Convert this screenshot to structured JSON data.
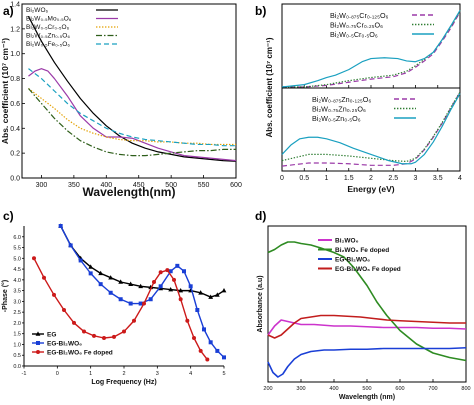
{
  "panels": {
    "a": "a)",
    "b": "b)",
    "c": "c)",
    "d": "d)"
  },
  "chart_data": [
    {
      "panel": "a",
      "type": "line",
      "xlabel": "Wavelength(nm)",
      "ylabel": "Abs. coefficient (10⁷ cm⁻¹)",
      "xlim": [
        270,
        600
      ],
      "ylim": [
        0,
        1.4
      ],
      "xticks": [
        300,
        350,
        400,
        450,
        500,
        550,
        600
      ],
      "yticks": [
        0,
        0.2,
        0.4,
        0.6,
        0.8,
        1.0,
        1.2,
        1.4
      ],
      "ytick_labels": [
        "0.0",
        "0.2",
        "0.4",
        "0.6",
        "0.8",
        "1.0",
        "1.2",
        "1.4"
      ],
      "series": [
        {
          "name": "Bi₂WO₆",
          "color": "#000000",
          "style": "solid",
          "x": [
            280,
            300,
            320,
            340,
            360,
            380,
            400,
            420,
            440,
            460,
            480,
            500,
            520,
            540,
            560,
            580,
            600
          ],
          "y": [
            1.3,
            1.1,
            0.93,
            0.78,
            0.64,
            0.52,
            0.42,
            0.34,
            0.28,
            0.24,
            0.21,
            0.19,
            0.17,
            0.16,
            0.15,
            0.14,
            0.135
          ]
        },
        {
          "name": "Bi₂W₀.₅Mo₀.₅O₆",
          "color": "#9b3aa8",
          "style": "solid",
          "x": [
            280,
            290,
            300,
            310,
            320,
            340,
            360,
            380,
            400,
            420,
            440,
            460,
            480,
            500,
            520,
            540,
            560,
            580,
            600
          ],
          "y": [
            0.82,
            0.86,
            0.88,
            0.86,
            0.8,
            0.66,
            0.5,
            0.4,
            0.33,
            0.33,
            0.32,
            0.28,
            0.24,
            0.21,
            0.18,
            0.17,
            0.16,
            0.15,
            0.14
          ]
        },
        {
          "name": "Bi₂W₀.₅Cr₀.₅O₆",
          "color": "#e3a000",
          "style": "dotted",
          "x": [
            280,
            300,
            320,
            340,
            360,
            380,
            400,
            420,
            440,
            460,
            480,
            500,
            520,
            540,
            560,
            580,
            600
          ],
          "y": [
            0.72,
            0.64,
            0.56,
            0.47,
            0.4,
            0.36,
            0.33,
            0.31,
            0.3,
            0.3,
            0.29,
            0.29,
            0.28,
            0.28,
            0.27,
            0.27,
            0.27
          ]
        },
        {
          "name": "Bi₂W₀.₅Zn₀.₅O₆",
          "color": "#2e5e1a",
          "style": "dashdot",
          "x": [
            280,
            300,
            320,
            340,
            360,
            380,
            400,
            420,
            440,
            460,
            480,
            500,
            520,
            540,
            560,
            580,
            600
          ],
          "y": [
            0.72,
            0.6,
            0.48,
            0.38,
            0.3,
            0.25,
            0.21,
            0.19,
            0.18,
            0.18,
            0.19,
            0.2,
            0.21,
            0.22,
            0.22,
            0.23,
            0.23
          ]
        },
        {
          "name": "Bi₂W₀.₅Fe₀.₅O₆",
          "color": "#1aa0c0",
          "style": "dashed",
          "x": [
            280,
            300,
            320,
            340,
            360,
            380,
            400,
            420,
            440,
            460,
            480,
            500,
            520,
            540,
            560,
            580,
            600
          ],
          "y": [
            0.88,
            0.8,
            0.7,
            0.6,
            0.52,
            0.46,
            0.4,
            0.36,
            0.33,
            0.31,
            0.3,
            0.29,
            0.28,
            0.27,
            0.27,
            0.26,
            0.26
          ]
        }
      ]
    },
    {
      "panel": "b",
      "type": "line",
      "xlabel": "Energy (eV)",
      "ylabel": "Abs. coefficient (10⁷ cm⁻¹)",
      "xlim": [
        0,
        4
      ],
      "xticks": [
        0,
        0.5,
        1,
        1.5,
        2,
        2.5,
        3,
        3.5,
        4
      ],
      "xtick_labels": [
        "0",
        "0.5",
        "1",
        "1.5",
        "2",
        "2.5",
        "3",
        "3.5",
        "4"
      ],
      "subplots": [
        {
          "ylim": [
            0,
            1
          ],
          "series": [
            {
              "name": "Bi₂W₀.₈₇₅Cr₀.₁₂₅O₆",
              "color": "#9b3aa8",
              "style": "dashed",
              "x": [
                0,
                0.5,
                1.0,
                1.5,
                2.0,
                2.5,
                2.8,
                3.0,
                3.2,
                3.4,
                3.6,
                3.8,
                4.0
              ],
              "y": [
                0.0,
                0.0,
                0.02,
                0.06,
                0.1,
                0.13,
                0.18,
                0.25,
                0.33,
                0.42,
                0.58,
                0.75,
                0.95
              ]
            },
            {
              "name": "Bi₂W₀.₇₅Cr₀.₂₅O₆",
              "color": "#2e7d32",
              "style": "dotted",
              "x": [
                0,
                0.5,
                1.0,
                1.5,
                2.0,
                2.5,
                2.8,
                3.0,
                3.2,
                3.4,
                3.6,
                3.8,
                4.0
              ],
              "y": [
                0.0,
                0.0,
                0.03,
                0.08,
                0.12,
                0.15,
                0.2,
                0.27,
                0.35,
                0.44,
                0.6,
                0.77,
                0.96
              ]
            },
            {
              "name": "Bi₂W₀.₅Cr₀.₅O₆",
              "color": "#1aa0c0",
              "style": "solid",
              "x": [
                0,
                0.5,
                0.8,
                1.0,
                1.2,
                1.5,
                1.8,
                2.0,
                2.3,
                2.6,
                2.8,
                3.0,
                3.2,
                3.4,
                3.6,
                3.8,
                4.0
              ],
              "y": [
                0.0,
                0.03,
                0.08,
                0.12,
                0.15,
                0.22,
                0.32,
                0.36,
                0.37,
                0.36,
                0.33,
                0.32,
                0.36,
                0.44,
                0.6,
                0.78,
                0.97
              ]
            }
          ]
        },
        {
          "ylim": [
            0,
            1
          ],
          "series": [
            {
              "name": "Bi₂W₀.₈₇₅Zn₀.₁₂₅O₆",
              "color": "#9b3aa8",
              "style": "dashed",
              "x": [
                0,
                0.3,
                0.6,
                1.0,
                1.5,
                2.0,
                2.5,
                2.8,
                3.0,
                3.2,
                3.4,
                3.6,
                3.8,
                4.0
              ],
              "y": [
                0.05,
                0.07,
                0.09,
                0.09,
                0.08,
                0.06,
                0.06,
                0.08,
                0.14,
                0.26,
                0.42,
                0.6,
                0.8,
                1.0
              ]
            },
            {
              "name": "Bi₂W₀.₇₅Zn₀.₂₅O₆",
              "color": "#2e7d32",
              "style": "dotted",
              "x": [
                0,
                0.3,
                0.6,
                1.0,
                1.5,
                2.0,
                2.5,
                2.8,
                3.0,
                3.2,
                3.4,
                3.6,
                3.8,
                4.0
              ],
              "y": [
                0.12,
                0.16,
                0.2,
                0.2,
                0.18,
                0.15,
                0.12,
                0.11,
                0.15,
                0.27,
                0.43,
                0.61,
                0.81,
                1.0
              ]
            },
            {
              "name": "Bi₂W₀.₅Zn₀.₅O₆",
              "color": "#1aa0c0",
              "style": "solid",
              "x": [
                0,
                0.2,
                0.4,
                0.6,
                0.8,
                1.0,
                1.3,
                1.6,
                2.0,
                2.4,
                2.7,
                2.9,
                3.0,
                3.2,
                3.4,
                3.6,
                3.8,
                4.0
              ],
              "y": [
                0.2,
                0.32,
                0.4,
                0.42,
                0.42,
                0.4,
                0.35,
                0.28,
                0.2,
                0.12,
                0.08,
                0.08,
                0.1,
                0.2,
                0.36,
                0.56,
                0.78,
                0.98
              ]
            }
          ]
        }
      ]
    },
    {
      "panel": "c",
      "type": "line",
      "xlabel": "Log Frequency (Hz)",
      "ylabel": "-Phase (°)",
      "xlim": [
        -1,
        5
      ],
      "ylim": [
        0,
        6.5
      ],
      "xticks": [
        -1,
        0,
        1,
        2,
        3,
        4,
        5
      ],
      "yticks": [
        0.0,
        0.5,
        1.0,
        1.5,
        2.0,
        2.5,
        3.0,
        3.5,
        4.0,
        4.5,
        5.0,
        5.5,
        6.0
      ],
      "ytick_labels": [
        "0.0",
        "0.5",
        "1.0",
        "1.5",
        "2.0",
        "2.5",
        "3.0",
        "3.5",
        "4.0",
        "4.5",
        "5.0",
        "5.5",
        "6.0"
      ],
      "series": [
        {
          "name": "EG",
          "color": "#000000",
          "marker": "triangle",
          "x": [
            0.1,
            0.4,
            0.7,
            1.0,
            1.3,
            1.6,
            1.9,
            2.2,
            2.5,
            2.8,
            3.1,
            3.4,
            3.7,
            4.0,
            4.3,
            4.6,
            4.8,
            5.0
          ],
          "y": [
            6.5,
            5.6,
            5.0,
            4.6,
            4.3,
            4.1,
            3.9,
            3.8,
            3.7,
            3.65,
            3.6,
            3.55,
            3.5,
            3.5,
            3.4,
            3.2,
            3.3,
            3.5
          ]
        },
        {
          "name": "EG-Bi₂WO₆",
          "color": "#1a3fd6",
          "marker": "square",
          "x": [
            0.1,
            0.4,
            0.7,
            1.0,
            1.3,
            1.6,
            1.9,
            2.2,
            2.5,
            2.8,
            3.1,
            3.4,
            3.6,
            3.8,
            4.0,
            4.2,
            4.4,
            4.6,
            4.8,
            5.0
          ],
          "y": [
            6.5,
            5.6,
            4.9,
            4.3,
            3.8,
            3.4,
            3.1,
            2.9,
            2.9,
            3.1,
            3.7,
            4.4,
            4.65,
            4.4,
            3.7,
            2.6,
            1.7,
            1.1,
            0.7,
            0.4
          ]
        },
        {
          "name": "EG-Bi₂WO₆ Fe doped",
          "color": "#cc1a1a",
          "marker": "circle",
          "x": [
            -0.7,
            -0.4,
            -0.1,
            0.2,
            0.5,
            0.8,
            1.1,
            1.4,
            1.7,
            2.0,
            2.3,
            2.6,
            2.9,
            3.1,
            3.3,
            3.5,
            3.7,
            3.9,
            4.1,
            4.3,
            4.5
          ],
          "y": [
            5.0,
            4.1,
            3.3,
            2.6,
            2.0,
            1.6,
            1.4,
            1.3,
            1.35,
            1.6,
            2.1,
            2.9,
            3.9,
            4.35,
            4.45,
            4.0,
            3.1,
            2.1,
            1.3,
            0.7,
            0.3
          ]
        }
      ]
    },
    {
      "panel": "d",
      "type": "line",
      "xlabel": "Wavelength (nm)",
      "ylabel": "Absorbance (a.u)",
      "xlim": [
        200,
        800
      ],
      "xticks": [
        200,
        300,
        400,
        500,
        600,
        700,
        800
      ],
      "series": [
        {
          "name": "Bi₂WO₆",
          "color": "#cc33cc",
          "x": [
            200,
            220,
            240,
            260,
            280,
            300,
            340,
            400,
            450,
            500,
            550,
            600,
            650,
            700,
            750,
            800
          ],
          "y": [
            0.3,
            0.36,
            0.4,
            0.39,
            0.38,
            0.37,
            0.37,
            0.36,
            0.36,
            0.355,
            0.35,
            0.35,
            0.35,
            0.345,
            0.345,
            0.34
          ]
        },
        {
          "name": "Bi₂WO₆ Fe doped",
          "color": "#2e8b22",
          "x": [
            200,
            220,
            240,
            260,
            280,
            300,
            330,
            360,
            400,
            430,
            460,
            500,
            530,
            560,
            600,
            650,
            700,
            750,
            800
          ],
          "y": [
            0.85,
            0.87,
            0.9,
            0.92,
            0.92,
            0.91,
            0.9,
            0.88,
            0.85,
            0.82,
            0.75,
            0.63,
            0.52,
            0.43,
            0.33,
            0.24,
            0.18,
            0.15,
            0.13
          ]
        },
        {
          "name": "EG-Bi₂WO₆",
          "color": "#1a3fd6",
          "x": [
            200,
            215,
            230,
            245,
            260,
            280,
            300,
            330,
            370,
            400,
            450,
            500,
            550,
            600,
            650,
            700,
            750,
            800
          ],
          "y": [
            0.12,
            0.05,
            0.02,
            0.04,
            0.09,
            0.14,
            0.17,
            0.19,
            0.2,
            0.2,
            0.205,
            0.205,
            0.21,
            0.21,
            0.21,
            0.21,
            0.21,
            0.215
          ]
        },
        {
          "name": "EG-Bi₂WO₆ Fe doped",
          "color": "#c21d1d",
          "x": [
            200,
            220,
            240,
            260,
            280,
            300,
            330,
            360,
            400,
            440,
            480,
            520,
            560,
            600,
            650,
            700,
            750,
            800
          ],
          "y": [
            0.3,
            0.28,
            0.3,
            0.34,
            0.38,
            0.41,
            0.42,
            0.43,
            0.43,
            0.425,
            0.42,
            0.41,
            0.4,
            0.395,
            0.39,
            0.385,
            0.38,
            0.38
          ]
        }
      ]
    }
  ]
}
